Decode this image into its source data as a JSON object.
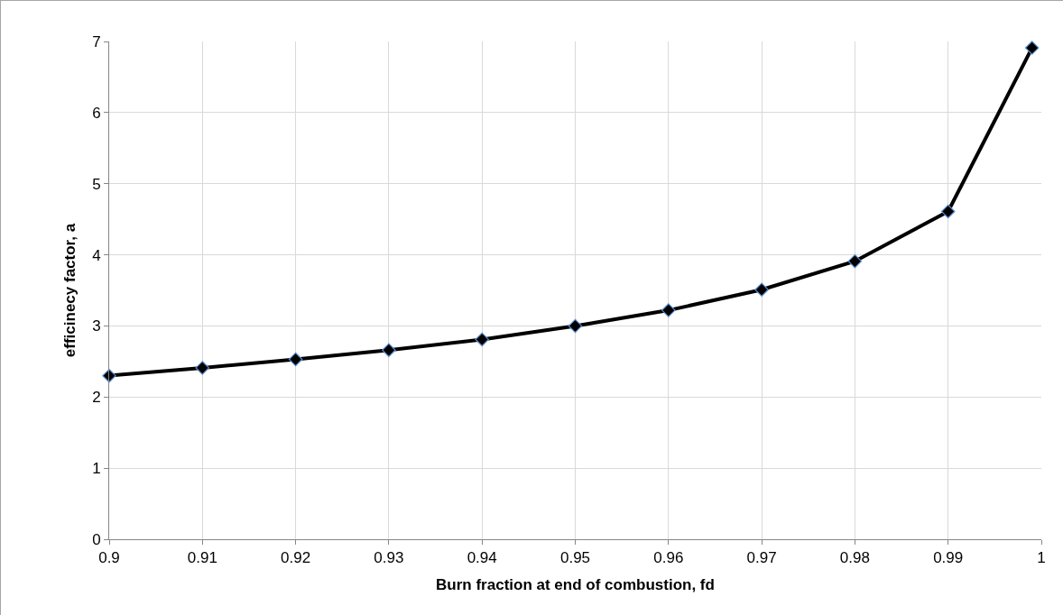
{
  "chart_data": {
    "type": "line",
    "xlabel": "Burn fraction at end of combustion, fd",
    "ylabel": "efficinecy factor, a",
    "x": [
      0.9,
      0.91,
      0.92,
      0.93,
      0.94,
      0.95,
      0.96,
      0.97,
      0.98,
      0.99,
      0.999
    ],
    "series": [
      {
        "color": "#000000",
        "values": [
          2.3,
          2.41,
          2.53,
          2.66,
          2.81,
          3.0,
          3.22,
          3.51,
          3.91,
          4.61,
          6.91
        ]
      }
    ],
    "xlim": [
      0.9,
      1
    ],
    "xticks": [
      0.9,
      0.91,
      0.92,
      0.93,
      0.94,
      0.95,
      0.96,
      0.97,
      0.98,
      0.99,
      1
    ],
    "ylim": [
      0,
      7
    ],
    "yticks": [
      0,
      1,
      2,
      3,
      4,
      5,
      6,
      7
    ],
    "grid": true,
    "marker": "diamond",
    "line_style": "solid"
  }
}
